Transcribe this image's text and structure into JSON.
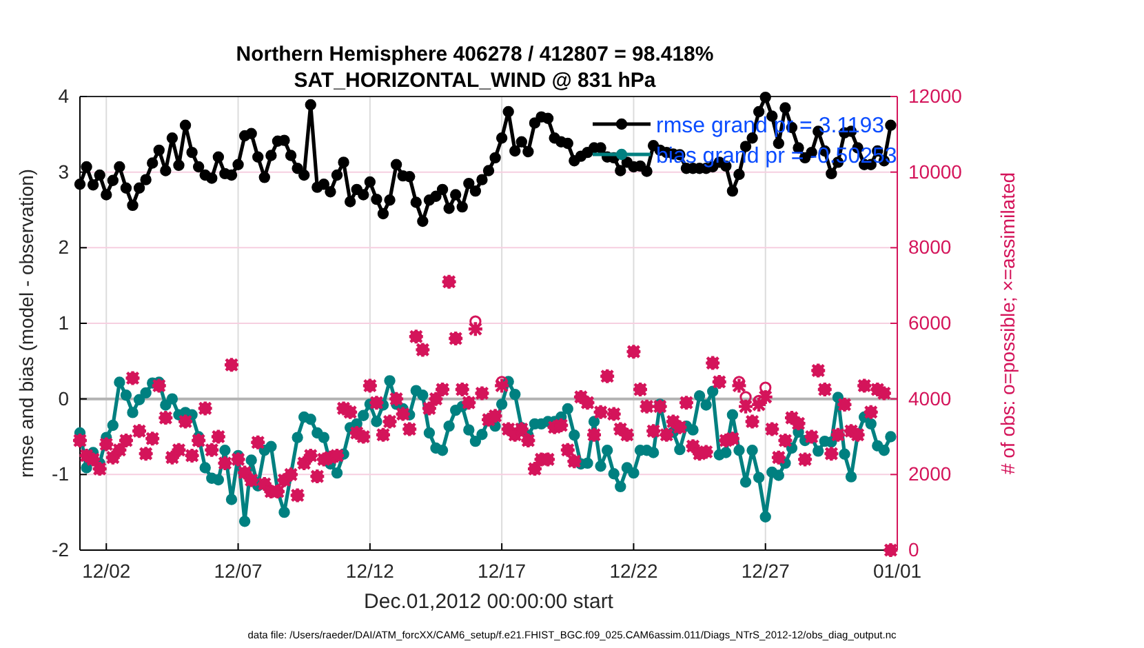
{
  "chart_data": {
    "type": "line",
    "title": "Northern Hemisphere 406278 / 412807 = 98.418%",
    "subtitle": "SAT_HORIZONTAL_WIND @ 831 hPa",
    "xlabel": "Dec.01,2012 00:00:00 start",
    "ylabel": "rmse and bias (model - observation)",
    "y2label": "# of obs: o=possible; ×=assimilated",
    "annotations": [
      "data file: /Users/raeder/DAI/ATM_forcXX/CAM6_setup/f.e21.FHIST_BGC.f09_025.CAM6assim.011/Diags_NTrS_2012-12/obs_diag_output.nc"
    ],
    "x": [
      "2012-12-01T00:00",
      "2012-12-01T06:00",
      "2012-12-01T12:00",
      "2012-12-01T18:00",
      "2012-12-02T00:00",
      "2012-12-02T06:00",
      "2012-12-02T12:00",
      "2012-12-02T18:00",
      "2012-12-03T00:00",
      "2012-12-03T06:00",
      "2012-12-03T12:00",
      "2012-12-03T18:00",
      "2012-12-04T00:00",
      "2012-12-04T06:00",
      "2012-12-04T12:00",
      "2012-12-04T18:00",
      "2012-12-05T00:00",
      "2012-12-05T06:00",
      "2012-12-05T12:00",
      "2012-12-05T18:00",
      "2012-12-06T00:00",
      "2012-12-06T06:00",
      "2012-12-06T12:00",
      "2012-12-06T18:00",
      "2012-12-07T00:00",
      "2012-12-07T06:00",
      "2012-12-07T12:00",
      "2012-12-07T18:00",
      "2012-12-08T00:00",
      "2012-12-08T06:00",
      "2012-12-08T12:00",
      "2012-12-08T18:00",
      "2012-12-09T00:00",
      "2012-12-09T06:00",
      "2012-12-09T12:00",
      "2012-12-09T18:00",
      "2012-12-10T00:00",
      "2012-12-10T06:00",
      "2012-12-10T12:00",
      "2012-12-10T18:00",
      "2012-12-11T00:00",
      "2012-12-11T06:00",
      "2012-12-11T12:00",
      "2012-12-11T18:00",
      "2012-12-12T00:00",
      "2012-12-12T06:00",
      "2012-12-12T12:00",
      "2012-12-12T18:00",
      "2012-12-13T00:00",
      "2012-12-13T06:00",
      "2012-12-13T12:00",
      "2012-12-13T18:00",
      "2012-12-14T00:00",
      "2012-12-14T06:00",
      "2012-12-14T12:00",
      "2012-12-14T18:00",
      "2012-12-15T00:00",
      "2012-12-15T06:00",
      "2012-12-15T12:00",
      "2012-12-15T18:00",
      "2012-12-16T00:00",
      "2012-12-16T06:00",
      "2012-12-16T12:00",
      "2012-12-16T18:00",
      "2012-12-17T00:00",
      "2012-12-17T06:00",
      "2012-12-17T12:00",
      "2012-12-17T18:00",
      "2012-12-18T00:00",
      "2012-12-18T06:00",
      "2012-12-18T12:00",
      "2012-12-18T18:00",
      "2012-12-19T00:00",
      "2012-12-19T06:00",
      "2012-12-19T12:00",
      "2012-12-19T18:00",
      "2012-12-20T00:00",
      "2012-12-20T06:00",
      "2012-12-20T12:00",
      "2012-12-20T18:00",
      "2012-12-21T00:00",
      "2012-12-21T06:00",
      "2012-12-21T12:00",
      "2012-12-21T18:00",
      "2012-12-22T00:00",
      "2012-12-22T06:00",
      "2012-12-22T12:00",
      "2012-12-22T18:00",
      "2012-12-23T00:00",
      "2012-12-23T06:00",
      "2012-12-23T12:00",
      "2012-12-23T18:00",
      "2012-12-24T00:00",
      "2012-12-24T06:00",
      "2012-12-24T12:00",
      "2012-12-24T18:00",
      "2012-12-25T00:00",
      "2012-12-25T06:00",
      "2012-12-25T12:00",
      "2012-12-25T18:00",
      "2012-12-26T00:00",
      "2012-12-26T06:00",
      "2012-12-26T12:00",
      "2012-12-26T18:00",
      "2012-12-27T00:00",
      "2012-12-27T06:00",
      "2012-12-27T12:00",
      "2012-12-27T18:00",
      "2012-12-28T00:00",
      "2012-12-28T06:00",
      "2012-12-28T12:00",
      "2012-12-28T18:00",
      "2012-12-29T00:00",
      "2012-12-29T06:00",
      "2012-12-29T12:00",
      "2012-12-29T18:00",
      "2012-12-30T00:00",
      "2012-12-30T06:00",
      "2012-12-30T12:00",
      "2012-12-30T18:00",
      "2012-12-31T00:00",
      "2012-12-31T06:00",
      "2012-12-31T12:00",
      "2012-12-31T18:00"
    ],
    "series": [
      {
        "name": "rmse grand pr = 3.1193",
        "color": "#000000",
        "marker": "circle",
        "values": [
          2.84,
          3.07,
          2.83,
          2.96,
          2.7,
          2.89,
          3.07,
          2.79,
          2.56,
          2.79,
          2.9,
          3.12,
          3.29,
          3.02,
          3.45,
          3.09,
          3.62,
          3.26,
          3.07,
          2.96,
          2.92,
          3.2,
          2.98,
          2.96,
          3.1,
          3.48,
          3.51,
          3.2,
          2.93,
          3.22,
          3.41,
          3.42,
          3.22,
          3.05,
          2.96,
          3.89,
          2.8,
          2.84,
          2.74,
          2.96,
          3.13,
          2.61,
          2.77,
          2.7,
          2.87,
          2.64,
          2.45,
          2.63,
          3.1,
          2.95,
          2.94,
          2.6,
          2.35,
          2.63,
          2.68,
          2.77,
          2.52,
          2.7,
          2.54,
          2.85,
          2.75,
          2.9,
          3.02,
          3.19,
          3.45,
          3.8,
          3.28,
          3.4,
          3.27,
          3.65,
          3.73,
          3.71,
          3.45,
          3.4,
          3.38,
          3.15,
          3.21,
          3.26,
          3.32,
          3.32,
          3.2,
          3.19,
          3.02,
          3.13,
          3.07,
          3.08,
          3.01,
          3.35,
          3.29,
          3.26,
          3.24,
          3.23,
          3.05,
          3.05,
          3.05,
          3.05,
          3.07,
          3.13,
          3.08,
          2.75,
          2.97,
          3.34,
          3.45,
          3.8,
          3.99,
          3.74,
          3.38,
          3.85,
          3.59,
          3.32,
          3.19,
          3.26,
          3.54,
          3.28,
          2.98,
          3.13,
          3.52,
          3.54,
          3.32,
          3.1,
          3.1,
          3.28,
          3.15,
          3.62
        ]
      },
      {
        "name": "bias grand pr = -0.50253",
        "color": "#008080",
        "marker": "circle",
        "values": [
          -0.45,
          -0.91,
          -0.71,
          -0.85,
          -0.51,
          -0.35,
          0.22,
          0.05,
          -0.18,
          -0.01,
          0.08,
          0.21,
          0.22,
          -0.08,
          0.0,
          -0.21,
          -0.18,
          -0.21,
          -0.5,
          -0.91,
          -1.05,
          -1.07,
          -0.68,
          -1.33,
          -0.75,
          -1.62,
          -0.81,
          -1.15,
          -0.68,
          -0.63,
          -1.22,
          -1.5,
          -1.0,
          -0.51,
          -0.24,
          -0.27,
          -0.45,
          -0.51,
          -0.86,
          -0.98,
          -0.73,
          -0.38,
          -0.33,
          -0.22,
          -0.07,
          -0.3,
          -0.08,
          0.24,
          -0.07,
          -0.13,
          -0.21,
          0.11,
          0.05,
          -0.45,
          -0.65,
          -0.68,
          -0.36,
          -0.15,
          -0.1,
          -0.41,
          -0.56,
          -0.47,
          -0.27,
          -0.36,
          -0.07,
          0.23,
          0.06,
          -0.38,
          -0.48,
          -0.33,
          -0.33,
          -0.3,
          -0.3,
          -0.24,
          -0.13,
          -0.48,
          -0.86,
          -0.85,
          -0.3,
          -0.89,
          -0.68,
          -0.99,
          -1.16,
          -0.91,
          -0.98,
          -0.68,
          -0.68,
          -0.71,
          -0.07,
          -0.47,
          -0.44,
          -0.67,
          -0.36,
          -0.41,
          0.04,
          -0.08,
          0.1,
          -0.74,
          -0.71,
          -0.21,
          -0.68,
          -1.1,
          -0.68,
          -1.04,
          -1.56,
          -0.97,
          -1.01,
          -0.85,
          -0.65,
          -0.44,
          -0.55,
          -0.51,
          -0.69,
          -0.56,
          -0.57,
          0.02,
          -0.73,
          -1.03,
          -0.47,
          -0.24,
          -0.33,
          -0.62,
          -0.68,
          -0.5
        ]
      },
      {
        "type": "scatter",
        "axis": "y2",
        "color": "#d4145a",
        "marker": "circle",
        "values": [
          2900,
          2500,
          2400,
          2150,
          2800,
          2450,
          2650,
          2900,
          4550,
          3150,
          2550,
          2950,
          4350,
          3500,
          2450,
          2650,
          3400,
          2500,
          2900,
          3750,
          2650,
          3000,
          2300,
          4900,
          2400,
          2050,
          1850,
          2850,
          1750,
          1550,
          1550,
          1850,
          2000,
          1450,
          2300,
          2500,
          1950,
          2400,
          2450,
          2500,
          3750,
          3650,
          3100,
          3000,
          4350,
          3900,
          3050,
          3400,
          4000,
          3600,
          3200,
          5650,
          5300,
          3750,
          4000,
          4250,
          7100,
          5600,
          4250,
          3900,
          6050,
          4150,
          3450,
          3550,
          4450,
          3200,
          3050,
          3200,
          2900,
          2150,
          2400,
          2400,
          3250,
          3300,
          2650,
          2350,
          4050,
          3900,
          3050,
          3650,
          4600,
          3600,
          3200,
          3050,
          5250,
          4250,
          3800,
          3150,
          3800,
          3050,
          3400,
          3250,
          3900,
          2750,
          2550,
          2600,
          4950,
          4450,
          2900,
          2950,
          4450,
          4050,
          3400,
          3950,
          4300,
          3200,
          2450,
          2900,
          3500,
          3350,
          2400,
          3000,
          4750,
          4250,
          2550,
          3050,
          3850,
          3150,
          3050,
          4350,
          3650,
          4250,
          4150,
          0
        ]
      },
      {
        "type": "scatter",
        "axis": "y2",
        "color": "#d4145a",
        "marker": "cross",
        "values": [
          2900,
          2500,
          2400,
          2150,
          2800,
          2450,
          2650,
          2900,
          4550,
          3150,
          2550,
          2950,
          4350,
          3500,
          2450,
          2650,
          3400,
          2500,
          2900,
          3750,
          2650,
          3000,
          2300,
          4900,
          2400,
          2050,
          1850,
          2850,
          1750,
          1550,
          1550,
          1850,
          2000,
          1450,
          2300,
          2500,
          1950,
          2400,
          2450,
          2500,
          3750,
          3650,
          3100,
          3000,
          4350,
          3900,
          3050,
          3400,
          4000,
          3600,
          3200,
          5650,
          5300,
          3750,
          4000,
          4250,
          7100,
          5600,
          4250,
          3900,
          5850,
          4150,
          3450,
          3550,
          4350,
          3200,
          3050,
          3200,
          2900,
          2150,
          2400,
          2400,
          3250,
          3300,
          2650,
          2350,
          4050,
          3900,
          3050,
          3650,
          4600,
          3600,
          3200,
          3050,
          5250,
          4250,
          3800,
          3150,
          3800,
          3050,
          3400,
          3250,
          3900,
          2750,
          2550,
          2600,
          4950,
          4450,
          2900,
          2950,
          4350,
          3800,
          3400,
          3850,
          4050,
          3200,
          2450,
          2900,
          3500,
          3350,
          2400,
          3000,
          4750,
          4250,
          2550,
          3050,
          3850,
          3150,
          3050,
          4350,
          3650,
          4250,
          4150,
          0
        ]
      }
    ],
    "xlim": [
      "2012-12-01T00:00",
      "2013-01-01T00:00"
    ],
    "xticks": [
      {
        "value": "2012-12-02",
        "label": "12/02"
      },
      {
        "value": "2012-12-07",
        "label": "12/07"
      },
      {
        "value": "2012-12-12",
        "label": "12/12"
      },
      {
        "value": "2012-12-17",
        "label": "12/17"
      },
      {
        "value": "2012-12-22",
        "label": "12/22"
      },
      {
        "value": "2012-12-27",
        "label": "12/27"
      },
      {
        "value": "2013-01-01",
        "label": "01/01"
      }
    ],
    "ylim": [
      -2,
      4
    ],
    "yticks": [
      -2,
      -1,
      0,
      1,
      2,
      3,
      4
    ],
    "y2lim": [
      0,
      12000
    ],
    "y2ticks": [
      0,
      2000,
      4000,
      6000,
      8000,
      10000,
      12000
    ],
    "ref_lines": [
      {
        "axis": "y",
        "value": 0,
        "color": "#b3b3b3"
      }
    ],
    "grid": true,
    "legend": "top right"
  }
}
